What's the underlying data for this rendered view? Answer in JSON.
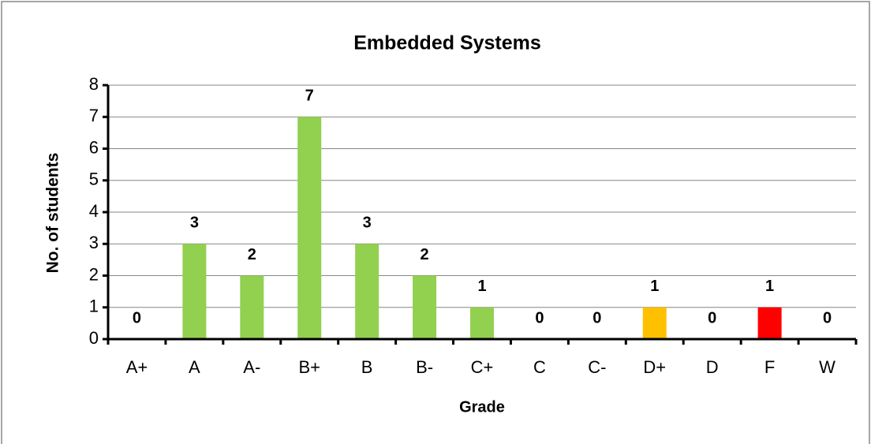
{
  "chart_data": {
    "type": "bar",
    "title": "Embedded Systems",
    "x_label": "Grade",
    "y_label": "No. of students",
    "categories": [
      "A+",
      "A",
      "A-",
      "B+",
      "B",
      "B-",
      "C+",
      "C",
      "C-",
      "D+",
      "D",
      "F",
      "W"
    ],
    "values": [
      0,
      3,
      2,
      7,
      3,
      2,
      1,
      0,
      0,
      1,
      0,
      1,
      0
    ],
    "colors": [
      "#92d050",
      "#92d050",
      "#92d050",
      "#92d050",
      "#92d050",
      "#92d050",
      "#92d050",
      "#92d050",
      "#92d050",
      "#ffc000",
      "#92d050",
      "#ff0000",
      "#92d050"
    ],
    "ylim": [
      0,
      8
    ],
    "yticks": [
      0,
      1,
      2,
      3,
      4,
      5,
      6,
      7,
      8
    ],
    "grid": true
  }
}
